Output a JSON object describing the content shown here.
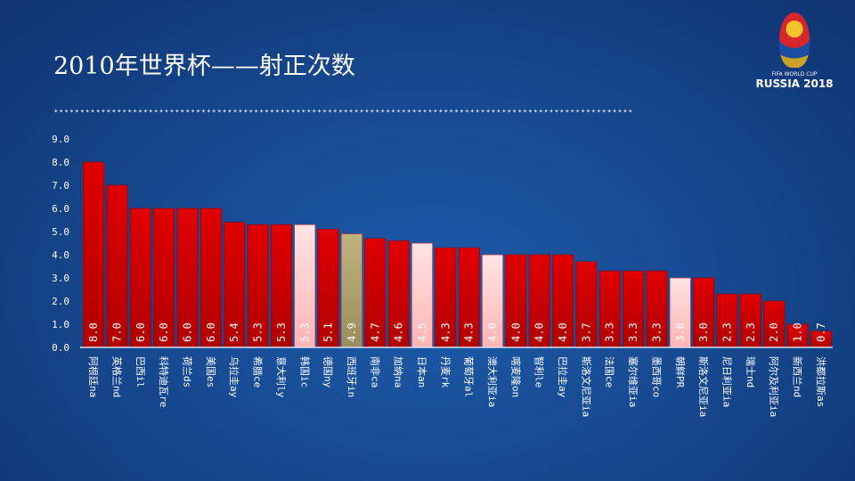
{
  "title": "2010年世界杯——射正次数",
  "logo": {
    "line1": "FIFA WORLD CUP",
    "line2": "RUSSIA 2018"
  },
  "colors": {
    "default": "#cc0000",
    "highlight": "#ffc8c8",
    "spain": "#b4a46e"
  },
  "chart_data": {
    "type": "bar",
    "title": "2010年世界杯——射正次数",
    "xlabel": "",
    "ylabel": "",
    "ylim": [
      0,
      9
    ],
    "yticks": [
      "0.0",
      "1.0",
      "2.0",
      "3.0",
      "4.0",
      "5.0",
      "6.0",
      "7.0",
      "8.0",
      "9.0"
    ],
    "grid": false,
    "categories": [
      "阿根廷na",
      "英格兰nd",
      "巴西il",
      "科特迪瓦re",
      "荷兰ds",
      "美国es",
      "乌拉圭ay",
      "希腊ce",
      "意大利ly",
      "韩国ic",
      "德国ny",
      "西班牙in",
      "南非ca",
      "加纳na",
      "日本an",
      "丹麦rk",
      "葡萄牙al",
      "澳大利亚ia",
      "喀麦隆on",
      "智利le",
      "巴拉圭ay",
      "斯洛文尼亚ia",
      "法国ce",
      "塞尔维亚ia",
      "墨西哥co",
      "朝鲜PR",
      "斯洛文尼亚ia",
      "尼日利亚ia",
      "瑞士nd",
      "阿尔及利亚ia",
      "新西兰nd",
      "洪都拉斯as"
    ],
    "values": [
      8.0,
      7.0,
      6.0,
      6.0,
      6.0,
      6.0,
      5.4,
      5.3,
      5.3,
      5.3,
      5.1,
      4.9,
      4.7,
      4.6,
      4.5,
      4.3,
      4.3,
      4.0,
      4.0,
      4.0,
      4.0,
      3.7,
      3.3,
      3.3,
      3.3,
      3.0,
      3.0,
      2.3,
      2.3,
      2.0,
      1.0,
      0.7
    ],
    "labels": [
      "8.0",
      "7.0",
      "6.0",
      "6.0",
      "6.0",
      "6.0",
      "5.4",
      "5.3",
      "5.3",
      "5.3",
      "5.1",
      "4.9",
      "4.7",
      "4.6",
      "4.5",
      "4.3",
      "4.3",
      "4.0",
      "4.0",
      "4.0",
      "4.0",
      "3.7",
      "3.3",
      "3.3",
      "3.3",
      "3.0",
      "3.0",
      "2.3",
      "2.3",
      "2.0",
      "1.0",
      "0.7"
    ],
    "bar_style": [
      "default",
      "default",
      "default",
      "default",
      "default",
      "default",
      "default",
      "default",
      "default",
      "highlight",
      "default",
      "spain",
      "default",
      "default",
      "highlight",
      "default",
      "default",
      "highlight",
      "default",
      "default",
      "default",
      "default",
      "default",
      "default",
      "default",
      "highlight",
      "default",
      "default",
      "default",
      "default",
      "default",
      "default"
    ]
  }
}
